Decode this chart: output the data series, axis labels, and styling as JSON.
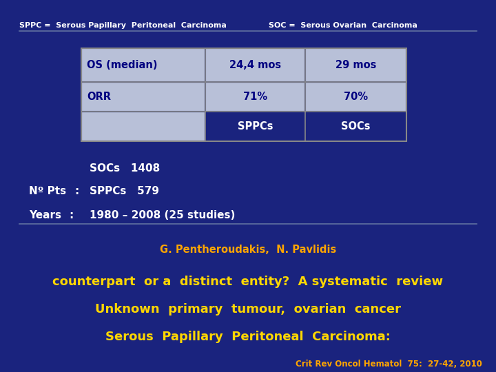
{
  "bg_color": "#1a237e",
  "citation_text": "Crit Rev Oncol Hematol  75:  27-42, 2010",
  "citation_color": "#ffa500",
  "title_line1": "Serous  Papillary  Peritoneal  Carcinoma:",
  "title_line2": "Unknown  primary  tumour,  ovarian  cancer",
  "title_line3": "counterpart  or a  distinct  entity?  A systematic  review",
  "title_color": "#ffd700",
  "authors_text": "G. Pentheroudakis,  N. Pavlidis",
  "authors_color": "#ffa500",
  "years_label": "Years",
  "years_value": "1980 – 2008 (25 studies)",
  "pts_label": "Nº Pts",
  "pts_value1": "SPPCs   579",
  "pts_value2": "SOCs   1408",
  "text_color": "#ffffff",
  "table_header": [
    "",
    "SPPCs",
    "SOCs"
  ],
  "table_rows": [
    [
      "ORR",
      "71%",
      "70%"
    ],
    [
      "OS (median)",
      "24,4 mos",
      "29 mos"
    ]
  ],
  "table_header_col0_bg": "#b8c0d8",
  "table_header_col1_bg": "#1a237e",
  "table_header_col1_text": "#ffffff",
  "table_row_bg": "#b8c0d8",
  "table_text_color": "#000080",
  "table_border_color": "#888888",
  "footer_left": "SPPC =  Serous Papillary  Peritoneal  Carcinoma",
  "footer_right": "SOC =  Serous Ovarian  Carcinoma",
  "footer_color": "#ffffff",
  "line_color": "#6070a0"
}
